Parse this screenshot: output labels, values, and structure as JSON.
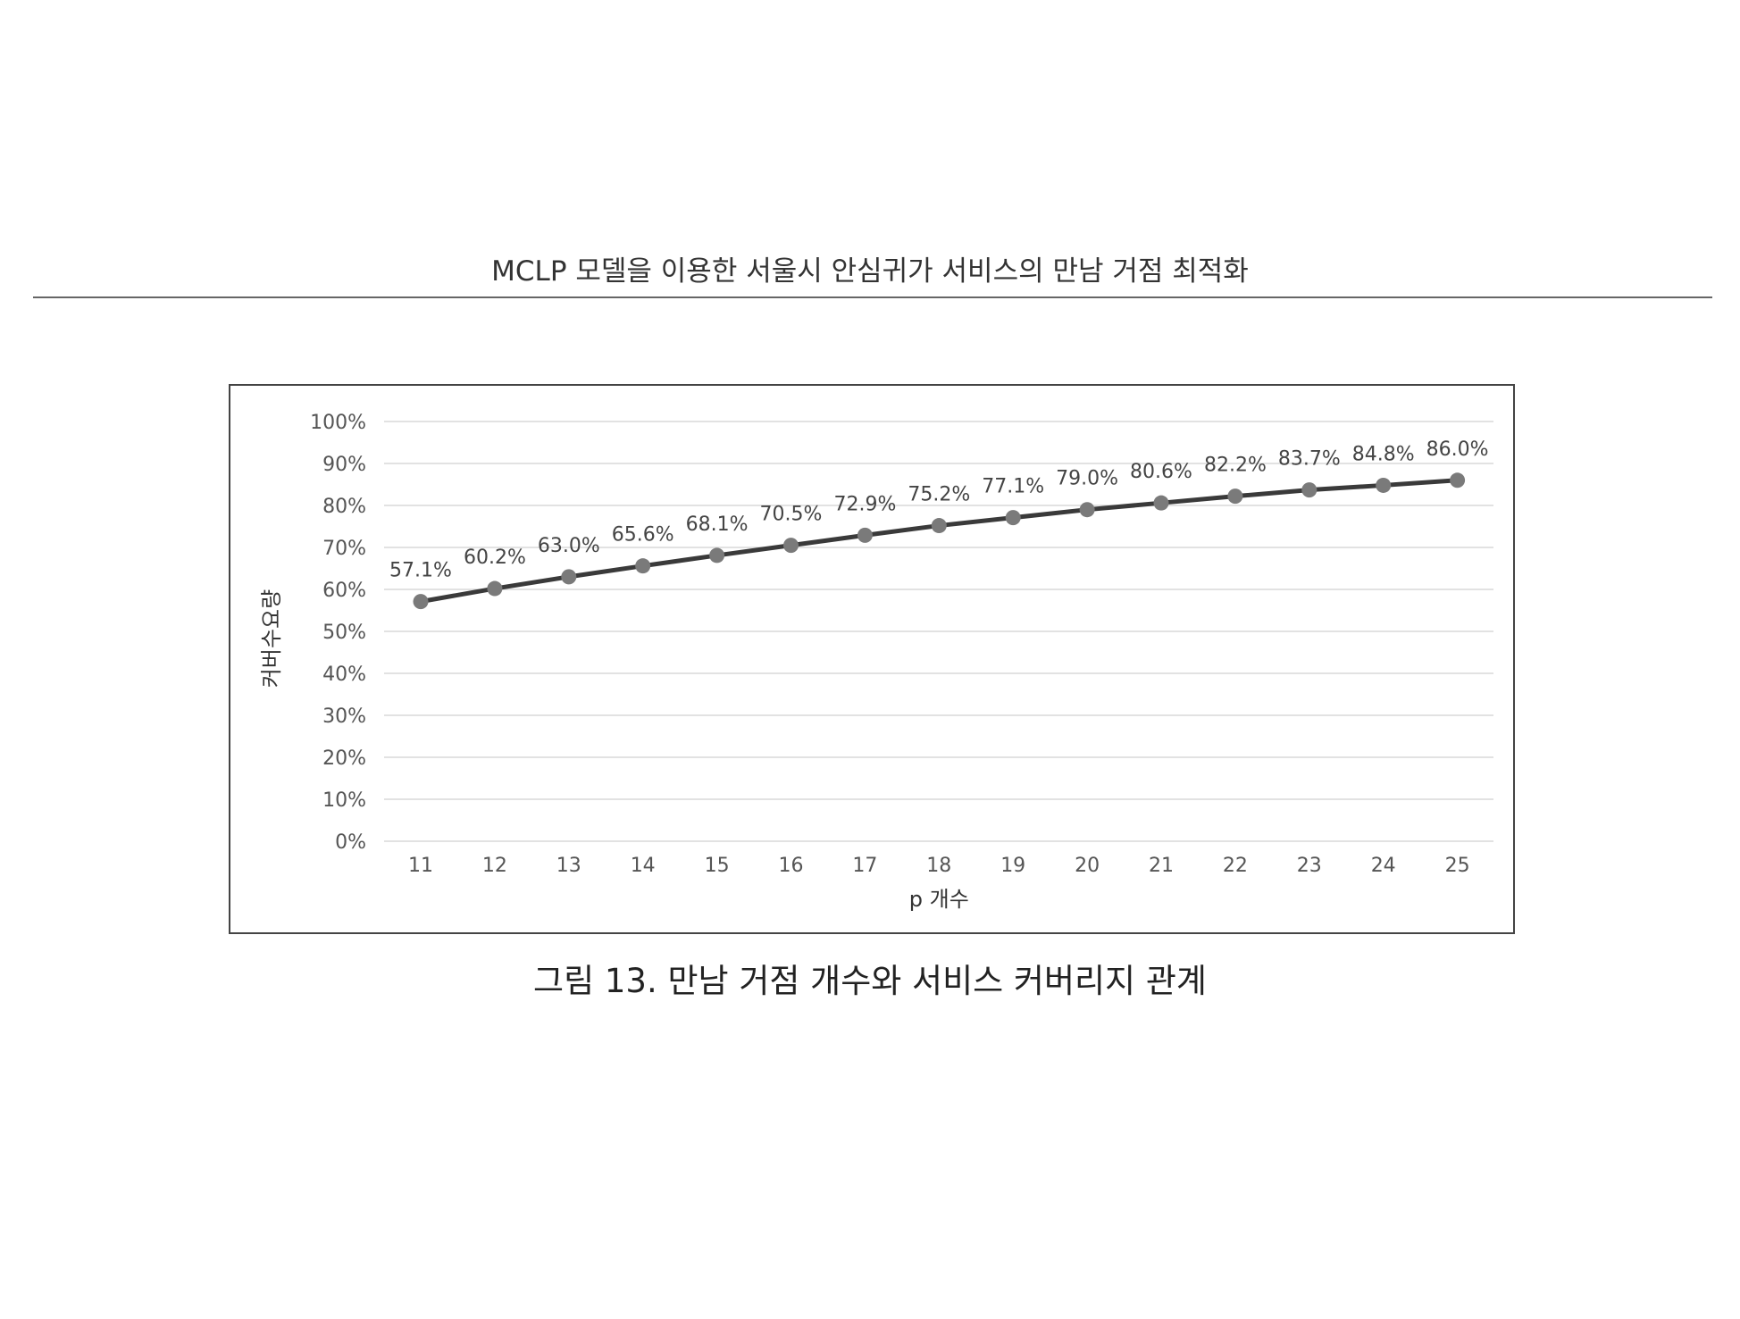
{
  "page": {
    "running_header": "MCLP 모델을 이용한 서울시 안심귀가 서비스의 만남 거점 최적화",
    "caption": "그림 13.  만남 거점 개수와 서비스 커버리지 관계"
  },
  "chart_data": {
    "type": "line",
    "title": "",
    "xlabel": "p 개수",
    "ylabel": "커버수요량",
    "categories": [
      "11",
      "12",
      "13",
      "14",
      "15",
      "16",
      "17",
      "18",
      "19",
      "20",
      "21",
      "22",
      "23",
      "24",
      "25"
    ],
    "series": [
      {
        "values": [
          57.1,
          60.2,
          63.0,
          65.6,
          68.1,
          70.5,
          72.9,
          75.2,
          77.1,
          79.0,
          80.6,
          82.2,
          83.7,
          84.8,
          86.0
        ],
        "data_labels": [
          "57.1%",
          "60.2%",
          "63.0%",
          "65.6%",
          "68.1%",
          "70.5%",
          "72.9%",
          "75.2%",
          "77.1%",
          "79.0%",
          "80.6%",
          "82.2%",
          "83.7%",
          "84.8%",
          "86.0%"
        ]
      }
    ],
    "y_ticks": [
      "0%",
      "10%",
      "20%",
      "30%",
      "40%",
      "50%",
      "60%",
      "70%",
      "80%",
      "90%",
      "100%"
    ],
    "ylim": [
      0,
      100
    ],
    "grid": true,
    "legend": "none",
    "colors": {
      "line": "#3a3a3a",
      "marker": "#7a7a7a",
      "grid": "#d9d9d9"
    }
  }
}
